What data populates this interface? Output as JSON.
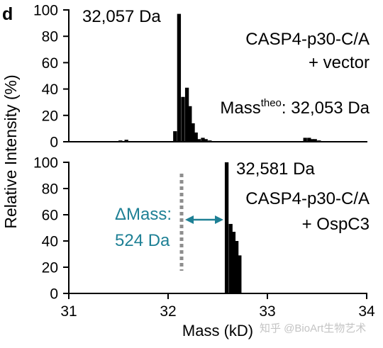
{
  "panel_label": "d",
  "watermark": "知乎 @BioArt生物艺术",
  "colors": {
    "bars": "#000000",
    "axes": "#000000",
    "delta_annotation": "#1e8095",
    "reference_line": "#8e8e8e",
    "watermark": "#c4c4c4"
  },
  "chart_data": {
    "type": "bar",
    "xlabel": "Mass (kD)",
    "ylabel": "Relative Intensity (%)",
    "xlim": [
      31,
      34
    ],
    "xticks": [
      31,
      32,
      33,
      34
    ],
    "grid": false,
    "panels": [
      {
        "ylim": [
          0,
          100
        ],
        "yticks": [
          0,
          20,
          40,
          60,
          80,
          100
        ],
        "peak_label": "32,057 Da",
        "sample": "CASP4-p30-C/A",
        "condition": "+ vector",
        "theoretical_mass": {
          "prefix": "Mass",
          "superscript": "theo",
          "value": ": 32,053 Da"
        },
        "series": [
          {
            "x": [
              31.52,
              31.58,
              32.07,
              32.11,
              32.15,
              32.19,
              32.22,
              32.25,
              32.28,
              32.31,
              32.35,
              32.38,
              32.42,
              33.38,
              33.42,
              33.45,
              33.48,
              33.52
            ],
            "values": [
              1,
              1.5,
              8,
              97,
              34,
              41,
              27,
              14,
              7,
              2,
              3,
              2,
              1,
              3,
              3,
              2,
              2,
              1
            ]
          }
        ]
      },
      {
        "ylim": [
          0,
          100
        ],
        "yticks": [
          0,
          20,
          40,
          60,
          80,
          100
        ],
        "peak_label": "32,581 Da",
        "sample": "CASP4-p30-C/A",
        "condition": "+ OspC3",
        "delta_mass": {
          "label": "ΔMass:",
          "value": "524 Da"
        },
        "series": [
          {
            "x": [
              32.59,
              32.63,
              32.66,
              32.69,
              32.72
            ],
            "values": [
              100,
              53,
              47,
              40,
              29
            ]
          }
        ]
      }
    ]
  }
}
